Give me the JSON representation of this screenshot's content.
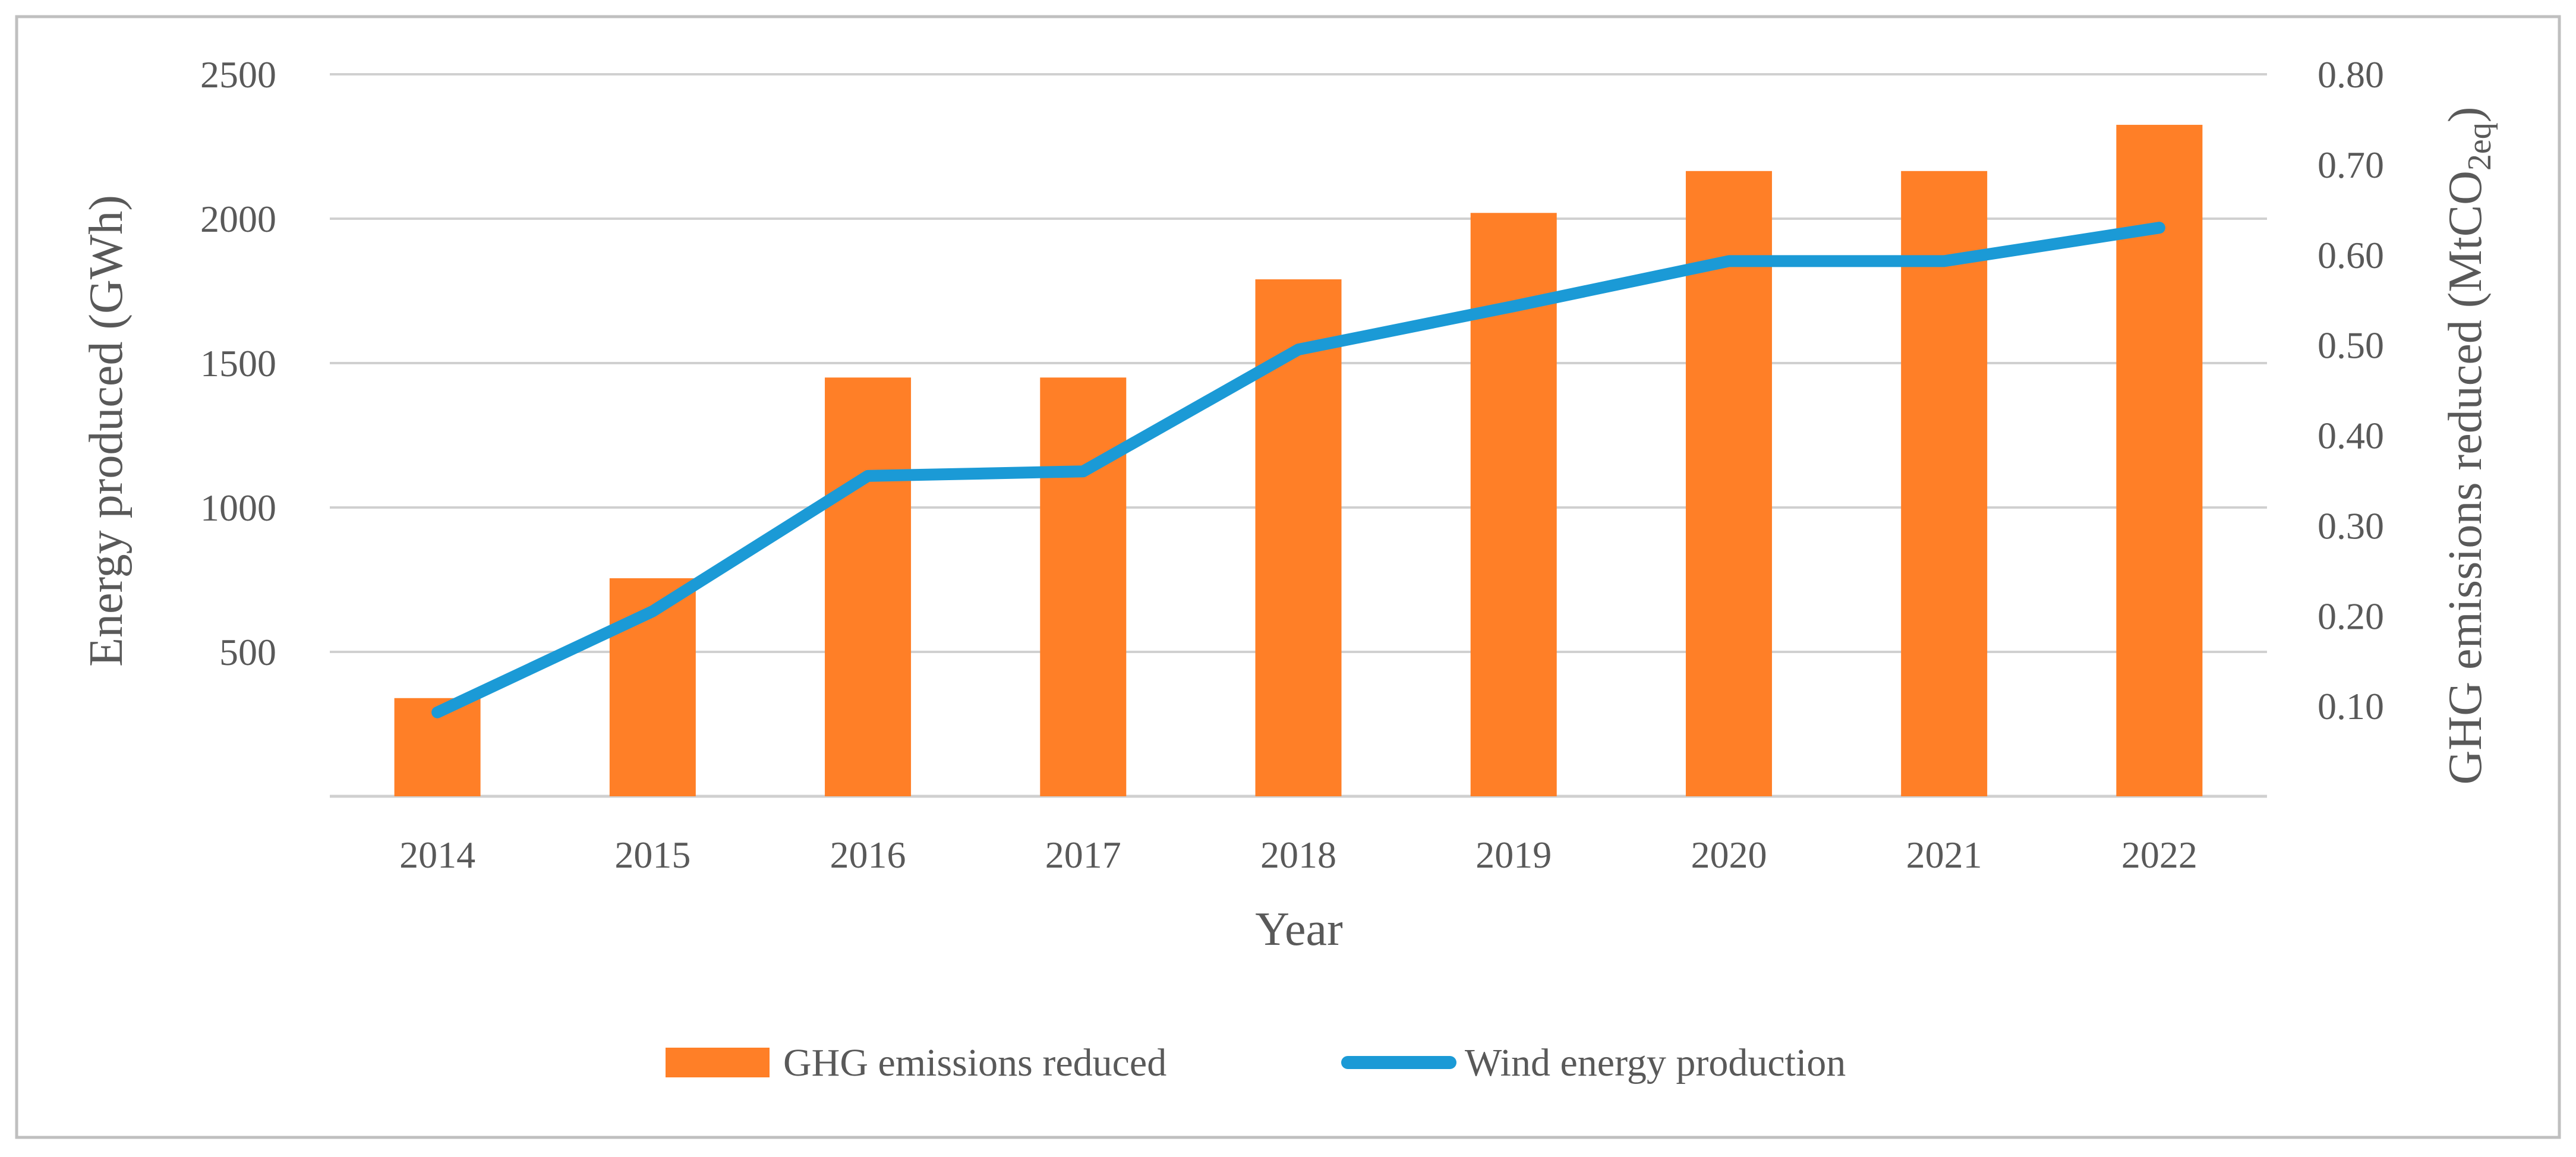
{
  "colors": {
    "bar": "#FF7F27",
    "line": "#1B9AD6",
    "grid": "#D0D0D0",
    "axis_text": "#595959",
    "frame": "#BFBFBF",
    "background": "#FFFFFF"
  },
  "chart_data": {
    "type": "bar",
    "title": "",
    "categories": [
      "2014",
      "2015",
      "2016",
      "2017",
      "2018",
      "2019",
      "2020",
      "2021",
      "2022"
    ],
    "xlabel": "Year",
    "ylabel": "Energy produced (GWh)",
    "y2label": {
      "prefix": "GHG emissions reduced (MtCO",
      "subscript": "2eq",
      "suffix": ")"
    },
    "ylim": [
      0,
      2500
    ],
    "y2lim": [
      0,
      0.8
    ],
    "y_ticks": [
      "500",
      "1000",
      "1500",
      "2000",
      "2500"
    ],
    "y2_ticks": [
      "0.10",
      "0.20",
      "0.30",
      "0.40",
      "0.50",
      "0.60",
      "0.70",
      "0.80"
    ],
    "grid": true,
    "legend_position": "bottom",
    "series": [
      {
        "name": "GHG emissions reduced",
        "type": "bar",
        "axis": "left",
        "values": [
          340,
          755,
          1450,
          1450,
          1790,
          2020,
          2165,
          2165,
          2325
        ]
      },
      {
        "name": "Wind energy production",
        "type": "line",
        "axis": "right",
        "values": [
          0.093,
          0.205,
          0.355,
          0.36,
          0.495,
          0.543,
          0.593,
          0.593,
          0.63
        ]
      }
    ]
  }
}
